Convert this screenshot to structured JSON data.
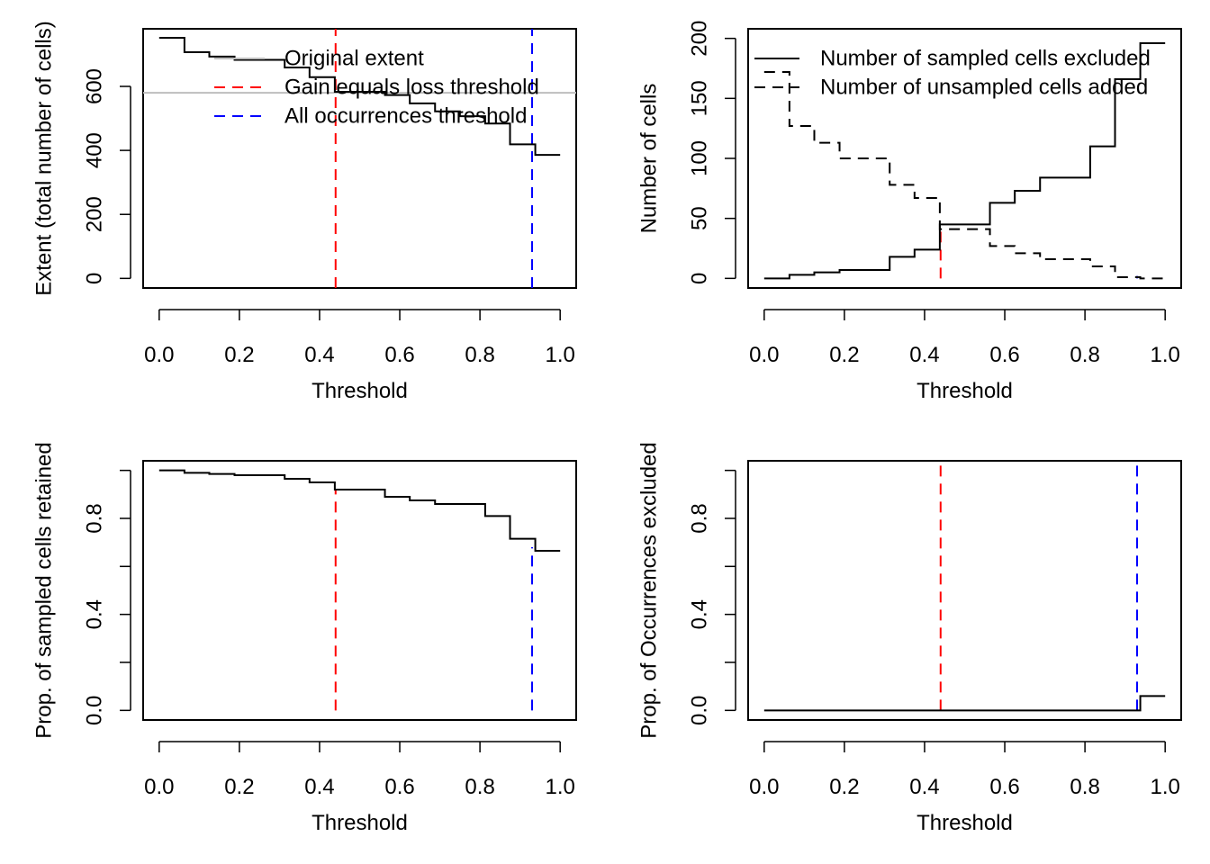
{
  "figure": {
    "colors": {
      "gain_loss": "#FF0000",
      "all_occ": "#0000FF",
      "original": "#BEBEBE",
      "line": "#000000"
    }
  },
  "chart_data": [
    {
      "id": "extent",
      "type": "line",
      "step": true,
      "xlabel": "Threshold",
      "ylabel": "Extent (total number of cells)",
      "xlim": [
        -0.04,
        1.04
      ],
      "ylim": [
        -30,
        780
      ],
      "xticks": [
        0,
        0.2,
        0.4,
        0.6,
        0.8,
        1
      ],
      "xtick_labels": [
        "0.0",
        "0.2",
        "0.4",
        "0.6",
        "0.8",
        "1.0"
      ],
      "yticks": [
        0,
        200,
        400,
        600
      ],
      "ytick_labels": [
        "0",
        "200",
        "400",
        "600"
      ],
      "x": [
        0,
        0.063,
        0.125,
        0.188,
        0.25,
        0.313,
        0.375,
        0.438,
        0.5,
        0.563,
        0.625,
        0.688,
        0.75,
        0.813,
        0.875,
        0.938,
        1
      ],
      "series": [
        {
          "values": [
            752,
            707,
            693,
            683,
            683,
            659,
            629,
            583,
            583,
            573,
            547,
            522,
            507,
            484,
            419,
            386,
            386
          ],
          "style": "solid",
          "color": "#000000"
        }
      ],
      "hlines": [
        {
          "y": 580,
          "color": "#BEBEBE"
        }
      ],
      "vlines": [
        {
          "x": 0.44,
          "color": "#FF0000",
          "dash": true
        },
        {
          "x": 0.93,
          "color": "#0000FF",
          "dash": true
        }
      ],
      "legend": {
        "position": "top-right",
        "entries": [
          {
            "label": "Original extent",
            "color": "#BEBEBE",
            "dash": false
          },
          {
            "label": "Gain equals loss threshold",
            "color": "#FF0000",
            "dash": true
          },
          {
            "label": "All occurrences threshold",
            "color": "#0000FF",
            "dash": true
          }
        ]
      }
    },
    {
      "id": "cells",
      "type": "line",
      "step": true,
      "xlabel": "Threshold",
      "ylabel": "Number of cells",
      "xlim": [
        -0.04,
        1.04
      ],
      "ylim": [
        -8,
        208
      ],
      "xticks": [
        0,
        0.2,
        0.4,
        0.6,
        0.8,
        1
      ],
      "xtick_labels": [
        "0.0",
        "0.2",
        "0.4",
        "0.6",
        "0.8",
        "1.0"
      ],
      "yticks": [
        0,
        50,
        100,
        150,
        200
      ],
      "ytick_labels": [
        "0",
        "50",
        "100",
        "150",
        "200"
      ],
      "x": [
        0,
        0.063,
        0.125,
        0.188,
        0.25,
        0.313,
        0.375,
        0.438,
        0.5,
        0.563,
        0.625,
        0.688,
        0.75,
        0.813,
        0.875,
        0.938,
        1
      ],
      "series": [
        {
          "name": "Number of sampled cells excluded",
          "values": [
            0,
            3,
            5,
            7,
            7,
            18,
            24,
            45,
            45,
            63,
            73,
            84,
            84,
            110,
            166,
            196,
            196
          ],
          "style": "solid",
          "color": "#000000"
        },
        {
          "name": "Number of unsampled cells added",
          "values": [
            172,
            127,
            113,
            100,
            100,
            78,
            67,
            41,
            41,
            27,
            21,
            16,
            16,
            10,
            1,
            0,
            0
          ],
          "style": "dashed",
          "color": "#000000"
        }
      ],
      "hlines": [],
      "vlines": [
        {
          "x": 0.44,
          "color": "#FF0000",
          "dash": true,
          "from": 0,
          "to": 42
        },
        {
          "x": 0.93,
          "color": "#0000FF",
          "dash": true,
          "from": 0,
          "to": 2
        }
      ],
      "legend": {
        "position": "top-right",
        "entries": [
          {
            "label": "Number of sampled cells excluded",
            "color": "#000000",
            "dash": false
          },
          {
            "label": "Number of unsampled cells added",
            "color": "#000000",
            "dash": true
          }
        ]
      }
    },
    {
      "id": "prop-sampled",
      "type": "line",
      "step": true,
      "xlabel": "Threshold",
      "ylabel": "Prop. of sampled cells retained",
      "xlim": [
        -0.04,
        1.04
      ],
      "ylim": [
        -0.04,
        1.04
      ],
      "xticks": [
        0,
        0.2,
        0.4,
        0.6,
        0.8,
        1
      ],
      "xtick_labels": [
        "0.0",
        "0.2",
        "0.4",
        "0.6",
        "0.8",
        "1.0"
      ],
      "yticks": [
        0,
        0.2,
        0.4,
        0.6,
        0.8,
        1
      ],
      "ytick_labels": [
        "0.0",
        "",
        "0.4",
        "",
        "0.8",
        ""
      ],
      "x": [
        0,
        0.063,
        0.125,
        0.188,
        0.25,
        0.313,
        0.375,
        0.438,
        0.5,
        0.563,
        0.625,
        0.688,
        0.75,
        0.813,
        0.875,
        0.938,
        1
      ],
      "series": [
        {
          "values": [
            1.0,
            0.99,
            0.985,
            0.98,
            0.98,
            0.965,
            0.95,
            0.92,
            0.92,
            0.89,
            0.875,
            0.86,
            0.86,
            0.81,
            0.715,
            0.665,
            0.665
          ],
          "style": "solid",
          "color": "#000000"
        }
      ],
      "hlines": [],
      "vlines": [
        {
          "x": 0.44,
          "color": "#FF0000",
          "dash": true,
          "from": 0,
          "to": 0.92
        },
        {
          "x": 0.93,
          "color": "#0000FF",
          "dash": true,
          "from": 0,
          "to": 0.68
        }
      ],
      "legend": null
    },
    {
      "id": "prop-occ",
      "type": "line",
      "step": true,
      "xlabel": "Threshold",
      "ylabel": "Prop. of Occurrences excluded",
      "xlim": [
        -0.04,
        1.04
      ],
      "ylim": [
        -0.04,
        1.04
      ],
      "xticks": [
        0,
        0.2,
        0.4,
        0.6,
        0.8,
        1
      ],
      "xtick_labels": [
        "0.0",
        "0.2",
        "0.4",
        "0.6",
        "0.8",
        "1.0"
      ],
      "yticks": [
        0,
        0.2,
        0.4,
        0.6,
        0.8,
        1
      ],
      "ytick_labels": [
        "0.0",
        "",
        "0.4",
        "",
        "0.8",
        ""
      ],
      "x": [
        0,
        0.063,
        0.125,
        0.188,
        0.25,
        0.313,
        0.375,
        0.438,
        0.5,
        0.563,
        0.625,
        0.688,
        0.75,
        0.813,
        0.875,
        0.938,
        1
      ],
      "series": [
        {
          "values": [
            0,
            0,
            0,
            0,
            0,
            0,
            0,
            0,
            0,
            0,
            0,
            0,
            0,
            0,
            0,
            0.06,
            0.06
          ],
          "style": "solid",
          "color": "#000000"
        }
      ],
      "hlines": [],
      "vlines": [
        {
          "x": 0.44,
          "color": "#FF0000",
          "dash": true,
          "from": 0,
          "to": 1.04
        },
        {
          "x": 0.93,
          "color": "#0000FF",
          "dash": true,
          "from": 0,
          "to": 1.04
        }
      ],
      "legend": null
    }
  ]
}
